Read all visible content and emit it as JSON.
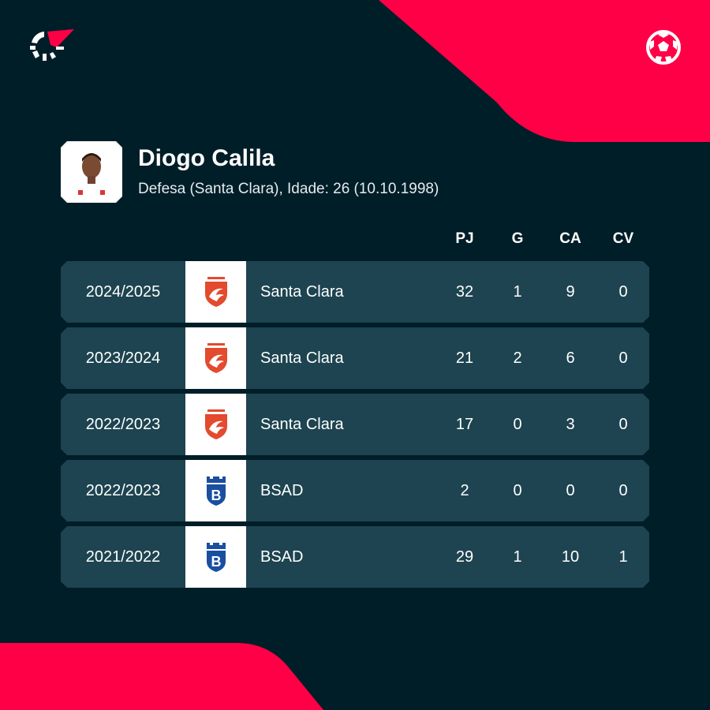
{
  "colors": {
    "background": "#001e28",
    "accent": "#ff0046",
    "row": "#1d4450"
  },
  "header": {
    "logo_icon": "flashscore-logo-icon",
    "sport_icon": "football-icon"
  },
  "player": {
    "name": "Diogo Calila",
    "details": "Defesa (Santa Clara), Idade: 26 (10.10.1998)"
  },
  "columns": [
    "PJ",
    "G",
    "CA",
    "CV"
  ],
  "rows": [
    {
      "season": "2024/2025",
      "team": "Santa Clara",
      "crest": "santa-clara",
      "pj": "32",
      "g": "1",
      "ca": "9",
      "cv": "0"
    },
    {
      "season": "2023/2024",
      "team": "Santa Clara",
      "crest": "santa-clara",
      "pj": "21",
      "g": "2",
      "ca": "6",
      "cv": "0"
    },
    {
      "season": "2022/2023",
      "team": "Santa Clara",
      "crest": "santa-clara",
      "pj": "17",
      "g": "0",
      "ca": "3",
      "cv": "0"
    },
    {
      "season": "2022/2023",
      "team": "BSAD",
      "crest": "bsad",
      "pj": "2",
      "g": "0",
      "ca": "0",
      "cv": "0"
    },
    {
      "season": "2021/2022",
      "team": "BSAD",
      "crest": "bsad",
      "pj": "29",
      "g": "1",
      "ca": "10",
      "cv": "1"
    }
  ]
}
